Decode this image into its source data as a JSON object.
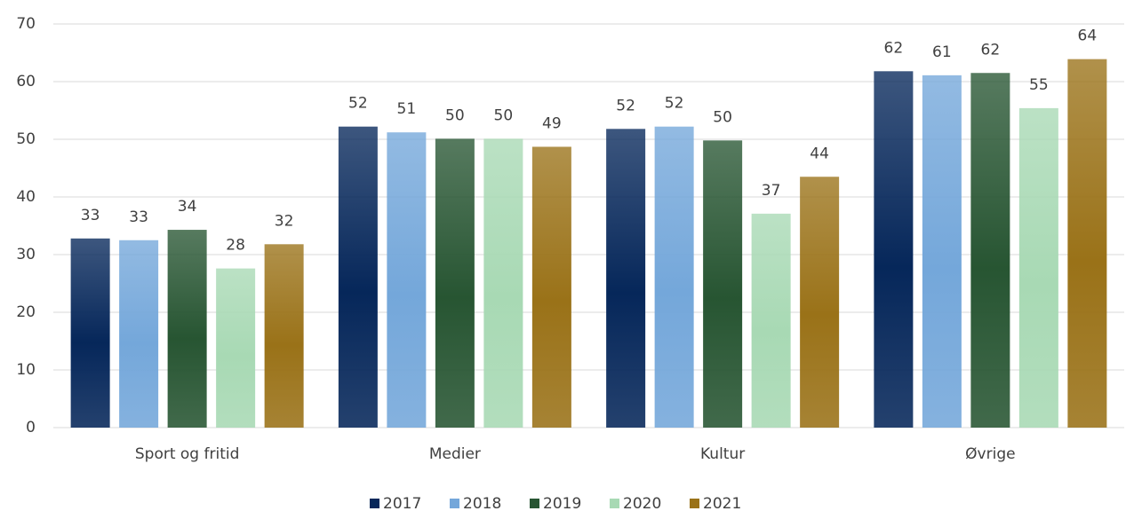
{
  "chart_data": {
    "type": "bar",
    "categories": [
      "Sport og fritid",
      "Medier",
      "Kultur",
      "Øvrige"
    ],
    "series": [
      {
        "name": "2017",
        "color": "#06275a",
        "values": [
          32.8,
          52.2,
          51.8,
          61.8
        ],
        "value_labels": [
          "33",
          "52",
          "52",
          "62"
        ]
      },
      {
        "name": "2018",
        "color": "#74a7da",
        "values": [
          32.5,
          51.2,
          52.2,
          61.1
        ],
        "value_labels": [
          "33",
          "51",
          "52",
          "61"
        ]
      },
      {
        "name": "2019",
        "color": "#275532",
        "values": [
          34.3,
          50.1,
          49.8,
          61.5
        ],
        "value_labels": [
          "34",
          "50",
          "50",
          "62"
        ]
      },
      {
        "name": "2020",
        "color": "#a8d9b4",
        "values": [
          27.6,
          50.1,
          37.1,
          55.4
        ],
        "value_labels": [
          "28",
          "50",
          "37",
          "55"
        ]
      },
      {
        "name": "2021",
        "color": "#9a7218",
        "values": [
          31.8,
          48.7,
          43.5,
          63.9
        ],
        "value_labels": [
          "32",
          "49",
          "44",
          "64"
        ]
      }
    ],
    "ylim": [
      0,
      70
    ],
    "yticks": [
      0,
      10,
      20,
      30,
      40,
      50,
      60,
      70
    ],
    "grid": true,
    "legend": "bottom"
  }
}
